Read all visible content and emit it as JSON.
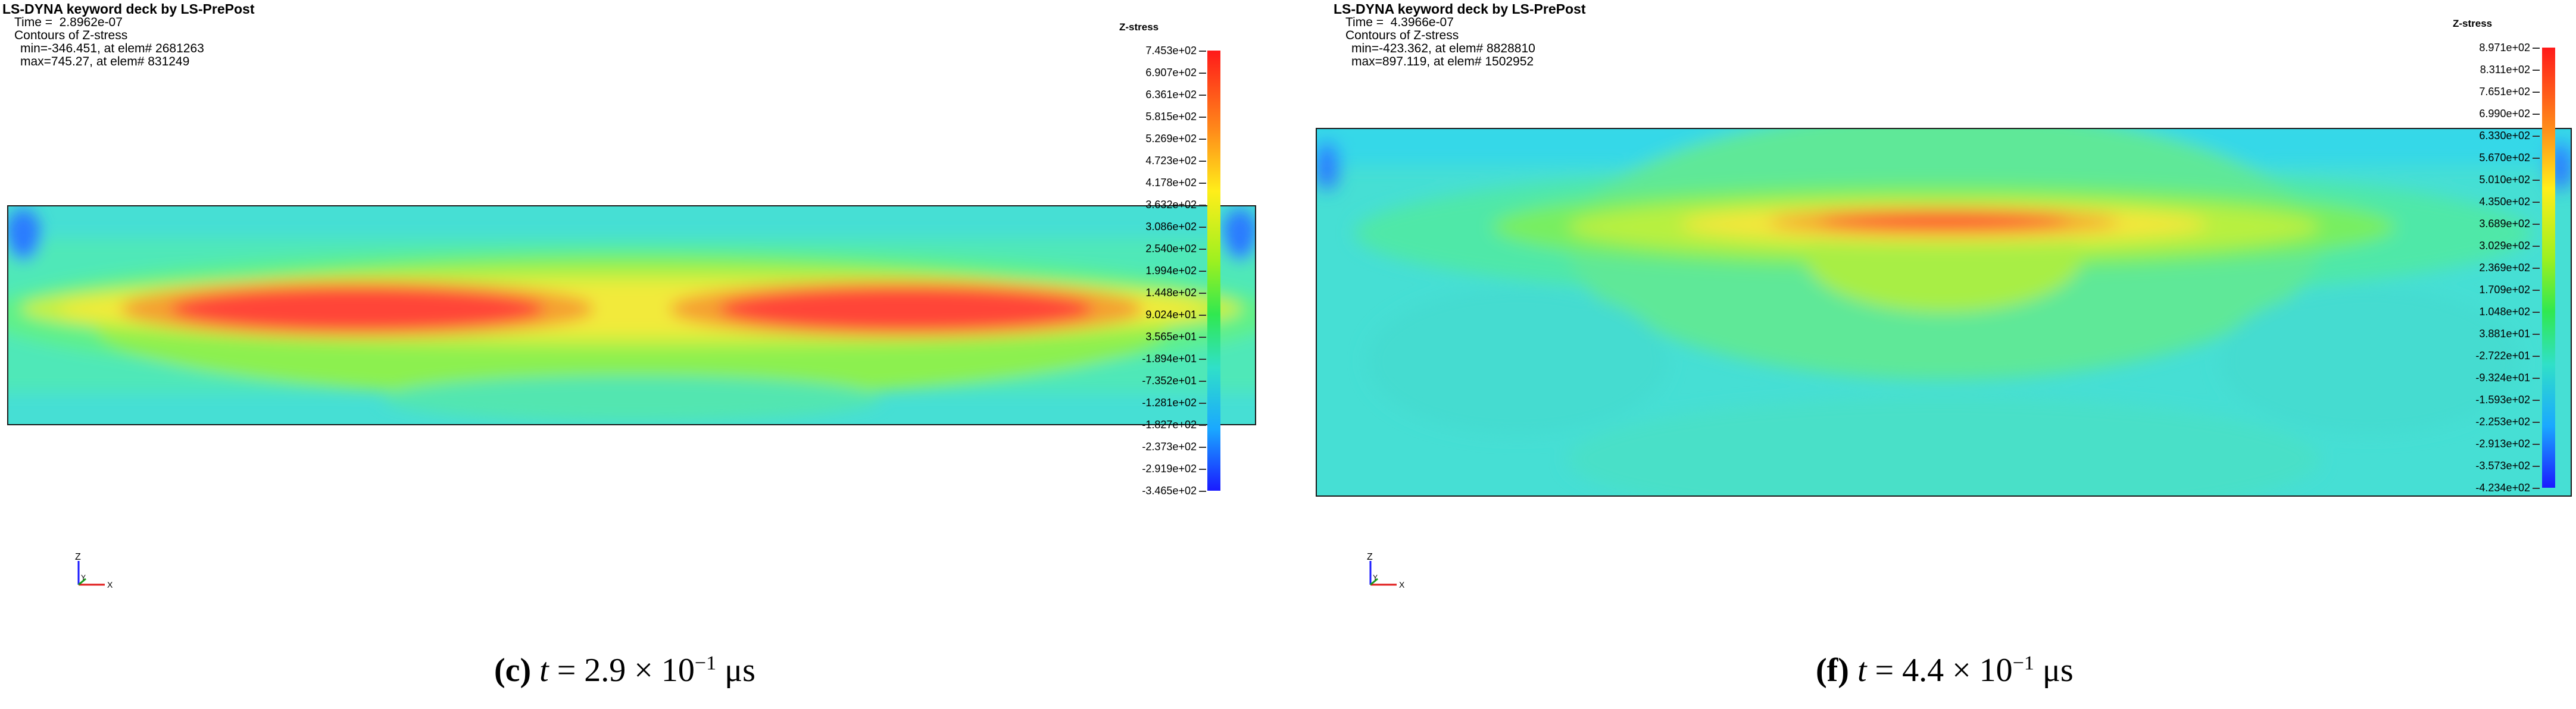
{
  "panels": [
    {
      "id": "c",
      "header": {
        "title": "LS-DYNA keyword deck by LS-PrePost",
        "time": "Time =  2.8962e-07",
        "contours": "Contours of Z-stress",
        "min": "min=-346.451, at elem# 2681263",
        "max": "max=745.27, at elem# 831249"
      },
      "colorbar": {
        "title": "Z-stress",
        "ticks": [
          "7.453e+02",
          "6.907e+02",
          "6.361e+02",
          "5.815e+02",
          "5.269e+02",
          "4.723e+02",
          "4.178e+02",
          "3.632e+02",
          "3.086e+02",
          "2.540e+02",
          "1.994e+02",
          "1.448e+02",
          "9.024e+01",
          "3.565e+01",
          "-1.894e+01",
          "-7.352e+01",
          "-1.281e+02",
          "-1.827e+02",
          "-2.373e+02",
          "-2.919e+02",
          "-3.465e+02"
        ]
      },
      "axes": {
        "z": "Z",
        "y": "Y",
        "x": "X"
      },
      "caption": {
        "label": "(c)",
        "var": "t",
        "eq": " = 2.9 × 10",
        "exp": "−1",
        "unit": " μs"
      }
    },
    {
      "id": "f",
      "header": {
        "title": "LS-DYNA keyword deck by LS-PrePost",
        "time": "Time =  4.3966e-07",
        "contours": "Contours of Z-stress",
        "min": "min=-423.362, at elem# 8828810",
        "max": "max=897.119, at elem# 1502952"
      },
      "colorbar": {
        "title": "Z-stress",
        "ticks": [
          "8.971e+02",
          "8.311e+02",
          "7.651e+02",
          "6.990e+02",
          "6.330e+02",
          "5.670e+02",
          "5.010e+02",
          "4.350e+02",
          "3.689e+02",
          "3.029e+02",
          "2.369e+02",
          "1.709e+02",
          "1.048e+02",
          "3.881e+01",
          "-2.722e+01",
          "-9.324e+01",
          "-1.593e+02",
          "-2.253e+02",
          "-2.913e+02",
          "-3.573e+02",
          "-4.234e+02"
        ]
      },
      "axes": {
        "z": "Z",
        "y": "Y",
        "x": "X"
      },
      "caption": {
        "label": "(f)",
        "var": "t",
        "eq": " = 4.4 × 10",
        "exp": "−1",
        "unit": " μs"
      }
    }
  ],
  "colors": {
    "background_stress": "#40e0d0",
    "peak_stress": "#ff3b3b",
    "low_stress": "#1a30ff"
  }
}
